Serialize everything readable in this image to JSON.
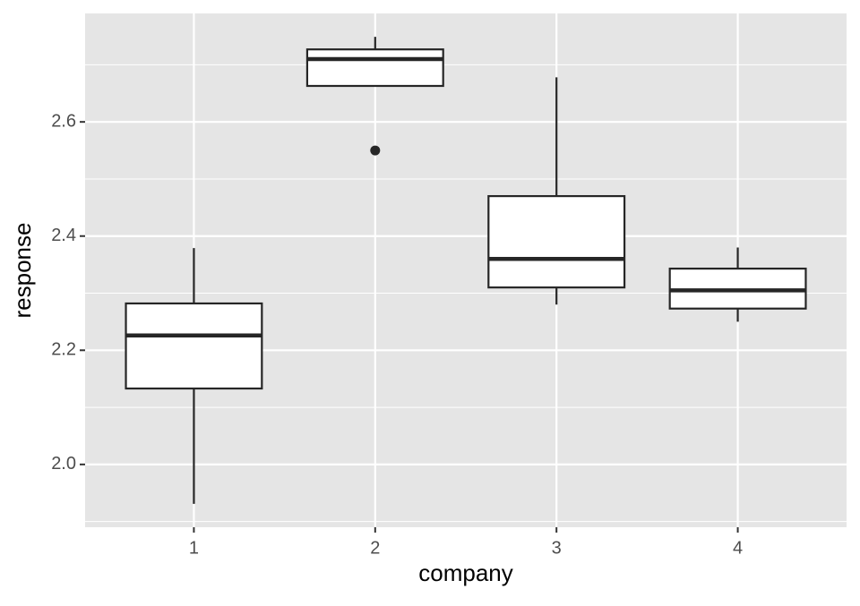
{
  "chart_data": {
    "type": "boxplot",
    "x_label": "company",
    "y_label": "response",
    "categories": [
      "1",
      "2",
      "3",
      "4"
    ],
    "boxes": [
      {
        "whisker_low": 1.931,
        "q1": 2.133,
        "median": 2.226,
        "q3": 2.282,
        "whisker_high": 2.379,
        "outliers": []
      },
      {
        "whisker_low": 2.663,
        "q1": 2.663,
        "median": 2.71,
        "q3": 2.727,
        "whisker_high": 2.749,
        "outliers": [
          2.55
        ]
      },
      {
        "whisker_low": 2.28,
        "q1": 2.31,
        "median": 2.36,
        "q3": 2.47,
        "whisker_high": 2.678,
        "outliers": []
      },
      {
        "whisker_low": 2.25,
        "q1": 2.273,
        "median": 2.305,
        "q3": 2.343,
        "whisker_high": 2.38,
        "outliers": []
      }
    ],
    "box_fill": "#ffffff",
    "box_stroke": "#262626",
    "ylim": [
      1.89,
      2.79
    ],
    "yticks": [
      {
        "value": 2,
        "label": "2.0"
      },
      2.2,
      2.4,
      2.6
    ],
    "y_minor_grid": [
      1.9,
      2.1,
      2.3,
      2.5,
      2.7
    ],
    "panel_color": "#e5e5e5",
    "grid": true
  }
}
